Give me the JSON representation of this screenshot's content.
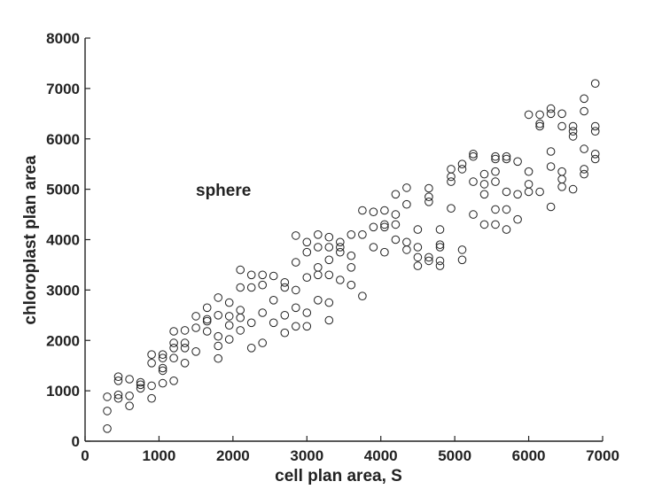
{
  "chart_data": {
    "type": "scatter",
    "title": "",
    "xlabel": "cell plan area, S",
    "ylabel": "chloroplast plan area",
    "xlim": [
      0,
      7000
    ],
    "ylim": [
      0,
      8000
    ],
    "xticks": [
      0,
      1000,
      2000,
      3000,
      4000,
      5000,
      6000,
      7000
    ],
    "yticks": [
      0,
      1000,
      2000,
      3000,
      4000,
      5000,
      6000,
      7000,
      8000
    ],
    "xtick_labels": [
      "0",
      "1000",
      "2000",
      "3000",
      "4000",
      "5000",
      "6000",
      "7000"
    ],
    "ytick_labels": [
      "0",
      "1000",
      "2000",
      "3000",
      "4000",
      "5000",
      "6000",
      "7000",
      "8000"
    ],
    "annotation": "sphere",
    "grid": false,
    "legend": false,
    "marker": "open-circle",
    "marker_color": "#222222",
    "series": [
      {
        "points": [
          [
            300,
            250
          ],
          [
            300,
            600
          ],
          [
            300,
            880
          ],
          [
            450,
            850
          ],
          [
            450,
            920
          ],
          [
            450,
            1200
          ],
          [
            450,
            1280
          ],
          [
            600,
            700
          ],
          [
            600,
            900
          ],
          [
            600,
            1230
          ],
          [
            750,
            1050
          ],
          [
            750,
            1120
          ],
          [
            750,
            1170
          ],
          [
            900,
            850
          ],
          [
            900,
            1100
          ],
          [
            900,
            1550
          ],
          [
            900,
            1720
          ],
          [
            1050,
            1150
          ],
          [
            1050,
            1400
          ],
          [
            1050,
            1450
          ],
          [
            1050,
            1650
          ],
          [
            1050,
            1720
          ],
          [
            1200,
            1200
          ],
          [
            1200,
            1650
          ],
          [
            1200,
            1850
          ],
          [
            1200,
            1950
          ],
          [
            1200,
            2180
          ],
          [
            1350,
            1550
          ],
          [
            1350,
            1850
          ],
          [
            1350,
            1950
          ],
          [
            1350,
            2200
          ],
          [
            1500,
            1780
          ],
          [
            1500,
            2250
          ],
          [
            1500,
            2480
          ],
          [
            1650,
            2180
          ],
          [
            1650,
            2380
          ],
          [
            1650,
            2420
          ],
          [
            1650,
            2650
          ],
          [
            1800,
            1640
          ],
          [
            1800,
            1890
          ],
          [
            1800,
            2080
          ],
          [
            1800,
            2500
          ],
          [
            1800,
            2850
          ],
          [
            1950,
            2020
          ],
          [
            1950,
            2300
          ],
          [
            1950,
            2480
          ],
          [
            1950,
            2750
          ],
          [
            2100,
            2200
          ],
          [
            2100,
            2450
          ],
          [
            2100,
            2600
          ],
          [
            2100,
            3050
          ],
          [
            2100,
            3400
          ],
          [
            2250,
            1850
          ],
          [
            2250,
            2350
          ],
          [
            2250,
            3050
          ],
          [
            2250,
            3300
          ],
          [
            2400,
            1950
          ],
          [
            2400,
            2550
          ],
          [
            2400,
            3100
          ],
          [
            2400,
            3300
          ],
          [
            2550,
            2350
          ],
          [
            2550,
            2800
          ],
          [
            2550,
            3280
          ],
          [
            2700,
            2150
          ],
          [
            2700,
            2500
          ],
          [
            2700,
            3050
          ],
          [
            2700,
            3150
          ],
          [
            2850,
            2280
          ],
          [
            2850,
            2650
          ],
          [
            2850,
            3000
          ],
          [
            2850,
            3550
          ],
          [
            2850,
            4080
          ],
          [
            3000,
            2280
          ],
          [
            3000,
            2550
          ],
          [
            3000,
            3250
          ],
          [
            3000,
            3750
          ],
          [
            3000,
            3950
          ],
          [
            3150,
            2800
          ],
          [
            3150,
            3300
          ],
          [
            3150,
            3450
          ],
          [
            3150,
            3850
          ],
          [
            3150,
            4100
          ],
          [
            3300,
            2400
          ],
          [
            3300,
            2750
          ],
          [
            3300,
            3300
          ],
          [
            3300,
            3600
          ],
          [
            3300,
            3850
          ],
          [
            3300,
            4050
          ],
          [
            3450,
            3200
          ],
          [
            3450,
            3750
          ],
          [
            3450,
            3850
          ],
          [
            3450,
            3950
          ],
          [
            3600,
            3100
          ],
          [
            3600,
            3450
          ],
          [
            3600,
            3680
          ],
          [
            3600,
            4100
          ],
          [
            3750,
            2880
          ],
          [
            3750,
            4100
          ],
          [
            3750,
            4580
          ],
          [
            3900,
            3850
          ],
          [
            3900,
            4250
          ],
          [
            3900,
            4550
          ],
          [
            4050,
            3750
          ],
          [
            4050,
            4250
          ],
          [
            4050,
            4300
          ],
          [
            4050,
            4580
          ],
          [
            4200,
            4000
          ],
          [
            4200,
            4300
          ],
          [
            4200,
            4500
          ],
          [
            4200,
            4900
          ],
          [
            4350,
            3800
          ],
          [
            4350,
            3950
          ],
          [
            4350,
            4700
          ],
          [
            4350,
            5030
          ],
          [
            4500,
            3480
          ],
          [
            4500,
            3650
          ],
          [
            4500,
            3850
          ],
          [
            4500,
            4200
          ],
          [
            4650,
            3580
          ],
          [
            4650,
            3650
          ],
          [
            4650,
            4750
          ],
          [
            4650,
            4850
          ],
          [
            4650,
            5020
          ],
          [
            4800,
            3480
          ],
          [
            4800,
            3580
          ],
          [
            4800,
            3850
          ],
          [
            4800,
            3900
          ],
          [
            4800,
            4200
          ],
          [
            4950,
            4620
          ],
          [
            4950,
            5150
          ],
          [
            4950,
            5250
          ],
          [
            4950,
            5400
          ],
          [
            5100,
            3600
          ],
          [
            5100,
            3800
          ],
          [
            5100,
            5400
          ],
          [
            5100,
            5500
          ],
          [
            5250,
            4500
          ],
          [
            5250,
            5150
          ],
          [
            5250,
            5650
          ],
          [
            5250,
            5700
          ],
          [
            5400,
            4300
          ],
          [
            5400,
            4900
          ],
          [
            5400,
            5100
          ],
          [
            5400,
            5300
          ],
          [
            5550,
            4300
          ],
          [
            5550,
            4600
          ],
          [
            5550,
            5150
          ],
          [
            5550,
            5350
          ],
          [
            5550,
            5600
          ],
          [
            5550,
            5650
          ],
          [
            5700,
            4200
          ],
          [
            5700,
            4600
          ],
          [
            5700,
            4950
          ],
          [
            5700,
            5600
          ],
          [
            5700,
            5650
          ],
          [
            5850,
            4400
          ],
          [
            5850,
            4900
          ],
          [
            5850,
            5550
          ],
          [
            6000,
            4950
          ],
          [
            6000,
            5100
          ],
          [
            6000,
            5350
          ],
          [
            6000,
            6480
          ],
          [
            6150,
            4950
          ],
          [
            6150,
            6250
          ],
          [
            6150,
            6300
          ],
          [
            6150,
            6480
          ],
          [
            6300,
            4650
          ],
          [
            6300,
            5450
          ],
          [
            6300,
            5750
          ],
          [
            6300,
            6500
          ],
          [
            6300,
            6600
          ],
          [
            6450,
            5050
          ],
          [
            6450,
            5200
          ],
          [
            6450,
            5350
          ],
          [
            6450,
            6250
          ],
          [
            6450,
            6500
          ],
          [
            6600,
            5000
          ],
          [
            6600,
            6050
          ],
          [
            6600,
            6150
          ],
          [
            6600,
            6250
          ],
          [
            6750,
            5300
          ],
          [
            6750,
            5400
          ],
          [
            6750,
            5800
          ],
          [
            6750,
            6550
          ],
          [
            6750,
            6800
          ],
          [
            6900,
            5600
          ],
          [
            6900,
            5700
          ],
          [
            6900,
            6150
          ],
          [
            6900,
            6250
          ],
          [
            6900,
            7100
          ]
        ]
      }
    ]
  }
}
